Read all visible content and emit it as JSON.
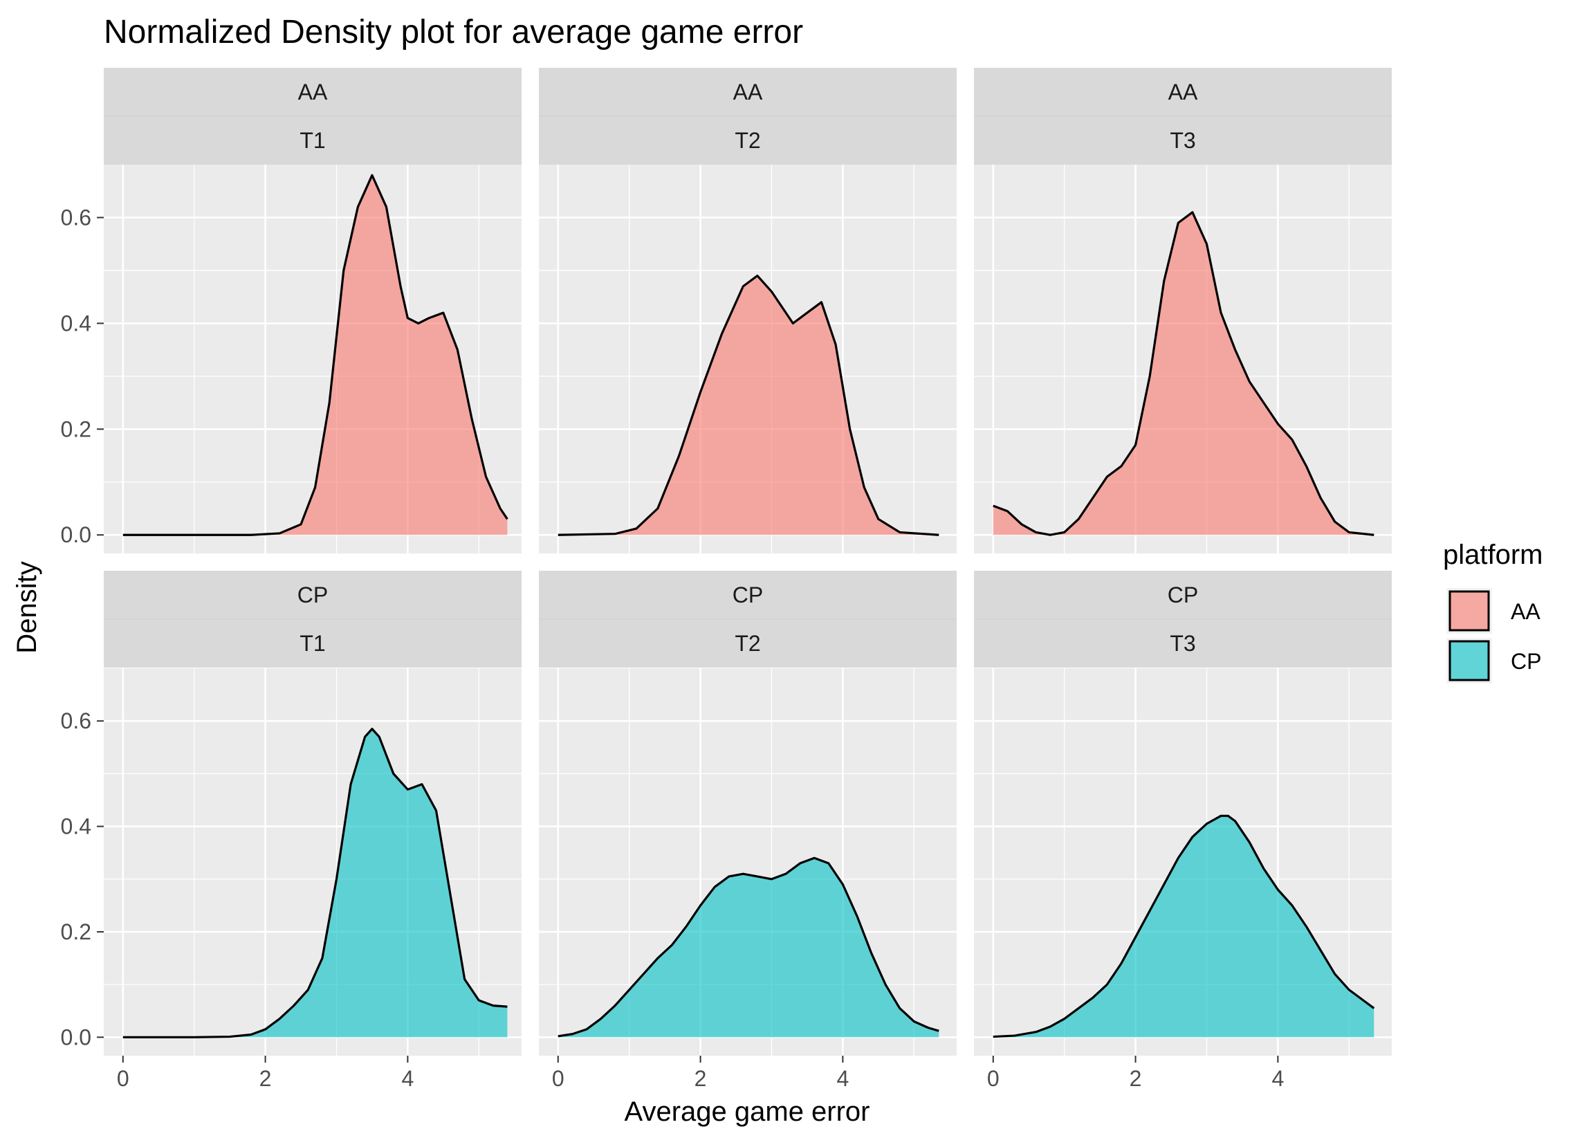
{
  "chart_data": {
    "type": "area",
    "title": "Normalized Density plot for average game error",
    "xlabel": "Average game error",
    "ylabel": "Density",
    "xlim": [
      -0.27,
      5.6
    ],
    "ylim": [
      -0.035,
      0.7
    ],
    "x_ticks": [
      0,
      2,
      4
    ],
    "x_tick_labels": [
      "0",
      "2",
      "4"
    ],
    "y_ticks": [
      0.0,
      0.2,
      0.4,
      0.6
    ],
    "y_tick_labels": [
      "0.0",
      "0.2",
      "0.4",
      "0.6"
    ],
    "grid": true,
    "legend": {
      "title": "platform",
      "position": "right",
      "entries": [
        {
          "label": "AA",
          "color": "#F8766D"
        },
        {
          "label": "CP",
          "color": "#00BFC4"
        }
      ]
    },
    "facet_strips": {
      "rows": [
        "AA",
        "CP"
      ],
      "cols": [
        "T1",
        "T2",
        "T3"
      ]
    },
    "panels": [
      {
        "platform": "AA",
        "group": "T1",
        "color": "#F8766D",
        "x": [
          0,
          1.0,
          1.8,
          2.2,
          2.5,
          2.7,
          2.9,
          3.1,
          3.3,
          3.5,
          3.7,
          3.9,
          4.0,
          4.15,
          4.3,
          4.5,
          4.7,
          4.9,
          5.1,
          5.3,
          5.4
        ],
        "y": [
          0,
          0,
          0,
          0.003,
          0.02,
          0.09,
          0.25,
          0.5,
          0.62,
          0.68,
          0.62,
          0.47,
          0.41,
          0.4,
          0.41,
          0.42,
          0.35,
          0.22,
          0.11,
          0.05,
          0.03
        ]
      },
      {
        "platform": "AA",
        "group": "T2",
        "color": "#F8766D",
        "x": [
          0,
          0.8,
          1.1,
          1.4,
          1.7,
          2.0,
          2.3,
          2.6,
          2.8,
          3.0,
          3.3,
          3.5,
          3.7,
          3.9,
          4.1,
          4.3,
          4.5,
          4.8,
          5.35
        ],
        "y": [
          0,
          0.002,
          0.012,
          0.05,
          0.15,
          0.27,
          0.38,
          0.47,
          0.49,
          0.46,
          0.4,
          0.42,
          0.44,
          0.36,
          0.2,
          0.09,
          0.03,
          0.005,
          0.0
        ]
      },
      {
        "platform": "AA",
        "group": "T3",
        "color": "#F8766D",
        "x": [
          0,
          0.2,
          0.4,
          0.6,
          0.8,
          1.0,
          1.2,
          1.4,
          1.6,
          1.8,
          2.0,
          2.2,
          2.4,
          2.6,
          2.8,
          3.0,
          3.2,
          3.4,
          3.6,
          3.8,
          4.0,
          4.2,
          4.4,
          4.6,
          4.8,
          5.0,
          5.35
        ],
        "y": [
          0.055,
          0.045,
          0.02,
          0.005,
          0.0,
          0.005,
          0.03,
          0.07,
          0.11,
          0.13,
          0.17,
          0.3,
          0.48,
          0.59,
          0.61,
          0.55,
          0.42,
          0.35,
          0.29,
          0.25,
          0.21,
          0.18,
          0.13,
          0.07,
          0.025,
          0.005,
          0.0
        ]
      },
      {
        "platform": "CP",
        "group": "T1",
        "color": "#00BFC4",
        "x": [
          0,
          1.0,
          1.5,
          1.8,
          2.0,
          2.2,
          2.4,
          2.6,
          2.8,
          3.0,
          3.2,
          3.4,
          3.5,
          3.6,
          3.8,
          4.0,
          4.2,
          4.4,
          4.6,
          4.8,
          5.0,
          5.2,
          5.4
        ],
        "y": [
          0,
          0,
          0.001,
          0.005,
          0.015,
          0.035,
          0.06,
          0.09,
          0.15,
          0.3,
          0.48,
          0.57,
          0.585,
          0.57,
          0.5,
          0.47,
          0.48,
          0.43,
          0.27,
          0.11,
          0.07,
          0.06,
          0.058
        ]
      },
      {
        "platform": "CP",
        "group": "T2",
        "color": "#00BFC4",
        "x": [
          0,
          0.2,
          0.4,
          0.6,
          0.8,
          1.0,
          1.2,
          1.4,
          1.6,
          1.8,
          2.0,
          2.2,
          2.4,
          2.6,
          2.8,
          3.0,
          3.2,
          3.4,
          3.6,
          3.8,
          4.0,
          4.2,
          4.4,
          4.6,
          4.8,
          5.0,
          5.2,
          5.35
        ],
        "y": [
          0.002,
          0.006,
          0.015,
          0.035,
          0.06,
          0.09,
          0.12,
          0.15,
          0.175,
          0.21,
          0.25,
          0.285,
          0.305,
          0.31,
          0.305,
          0.3,
          0.31,
          0.33,
          0.34,
          0.33,
          0.29,
          0.23,
          0.16,
          0.1,
          0.055,
          0.03,
          0.018,
          0.012
        ]
      },
      {
        "platform": "CP",
        "group": "T3",
        "color": "#00BFC4",
        "x": [
          0,
          0.3,
          0.6,
          0.8,
          1.0,
          1.2,
          1.4,
          1.6,
          1.8,
          2.0,
          2.2,
          2.4,
          2.6,
          2.8,
          3.0,
          3.2,
          3.3,
          3.4,
          3.6,
          3.8,
          4.0,
          4.2,
          4.4,
          4.6,
          4.8,
          5.0,
          5.2,
          5.35
        ],
        "y": [
          0.001,
          0.003,
          0.01,
          0.02,
          0.035,
          0.055,
          0.075,
          0.1,
          0.14,
          0.19,
          0.24,
          0.29,
          0.34,
          0.38,
          0.405,
          0.42,
          0.42,
          0.41,
          0.37,
          0.32,
          0.28,
          0.25,
          0.21,
          0.165,
          0.12,
          0.09,
          0.07,
          0.055
        ]
      }
    ]
  }
}
